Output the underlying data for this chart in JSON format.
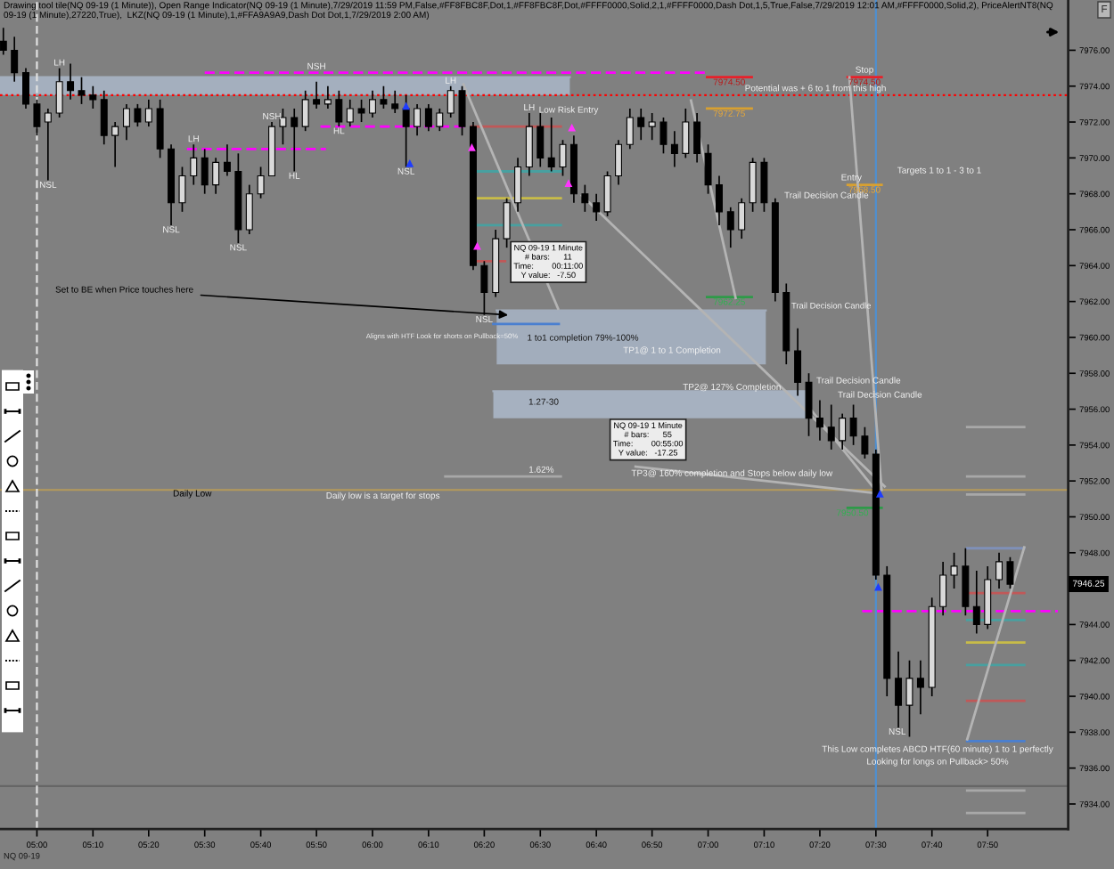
{
  "chart_data": {
    "type": "candlestick",
    "title": "Drawing tool tile(NQ 09-19 (1 Minute)), Open Range Indicator(NQ 09-19 (1 Minute),7/29/2019 11:59 PM,False,#FF8FBC8F,Dot,1,#FF8FBC8F,Dot,#FFFF0000,Solid,2,1,#FFFF0000,Dash Dot,1,5,True,False,7/29/2019 12:01 AM,#FFFF0000,Solid,2), PriceAlertNT8(NQ 09-19 (1 Minute),27220,True),  LKZ(NQ 09-19 (1 Minute),1,#FFA9A9A9,Dash Dot Dot,1,7/29/2019 2:00 AM)",
    "x": [
      4.9,
      4.933,
      4.967,
      5.0,
      5.033,
      5.067,
      5.1,
      5.133,
      5.167,
      5.2,
      5.233,
      5.267,
      5.3,
      5.333,
      5.367,
      5.4,
      5.433,
      5.467,
      5.5,
      5.533,
      5.567,
      5.6,
      5.633,
      5.667,
      5.7,
      5.733,
      5.767,
      5.8,
      5.833,
      5.867,
      5.9,
      5.933,
      5.967,
      6.0,
      6.033,
      6.067,
      6.1,
      6.133,
      6.167,
      6.2,
      6.233,
      6.267,
      6.3,
      6.333,
      6.367,
      6.4,
      6.433,
      6.467,
      6.5,
      6.533,
      6.567,
      6.6,
      6.633,
      6.667,
      6.7,
      6.733,
      6.767,
      6.8,
      6.833,
      6.867,
      6.9,
      6.933,
      6.967,
      7.0,
      7.033,
      7.067,
      7.1,
      7.133,
      7.167,
      7.2,
      7.233,
      7.267,
      7.3,
      7.333,
      7.367,
      7.4,
      7.433,
      7.467,
      7.5,
      7.533,
      7.567,
      7.6,
      7.633,
      7.667,
      7.7,
      7.733,
      7.767,
      7.8,
      7.833,
      7.867,
      7.9
    ],
    "ohlc": [
      [
        7976.5,
        7977.25,
        7975.75,
        7976.0
      ],
      [
        7976.0,
        7976.75,
        7974.25,
        7974.75
      ],
      [
        7974.75,
        7975.0,
        7972.75,
        7973.0
      ],
      [
        7973.0,
        7973.25,
        7971.25,
        7971.75
      ],
      [
        7972.0,
        7972.75,
        7968.75,
        7972.5
      ],
      [
        7972.5,
        7975.0,
        7972.25,
        7974.25
      ],
      [
        7974.25,
        7975.25,
        7973.25,
        7973.75
      ],
      [
        7973.75,
        7974.5,
        7973.0,
        7973.5
      ],
      [
        7973.5,
        7974.0,
        7972.75,
        7973.25
      ],
      [
        7973.25,
        7973.75,
        7970.75,
        7971.25
      ],
      [
        7971.25,
        7972.0,
        7969.5,
        7971.75
      ],
      [
        7971.75,
        7973.0,
        7971.0,
        7972.75
      ],
      [
        7972.75,
        7973.0,
        7971.75,
        7972.0
      ],
      [
        7972.0,
        7973.25,
        7971.75,
        7972.75
      ],
      [
        7972.75,
        7973.25,
        7970.0,
        7970.5
      ],
      [
        7970.5,
        7970.75,
        7966.25,
        7967.5
      ],
      [
        7967.5,
        7969.5,
        7967.0,
        7969.0
      ],
      [
        7969.0,
        7970.75,
        7968.5,
        7970.0
      ],
      [
        7970.0,
        7970.5,
        7968.0,
        7968.5
      ],
      [
        7968.5,
        7970.0,
        7968.0,
        7969.75
      ],
      [
        7969.75,
        7970.75,
        7969.0,
        7969.25
      ],
      [
        7969.25,
        7970.25,
        7965.25,
        7966.0
      ],
      [
        7966.0,
        7968.5,
        7965.75,
        7968.0
      ],
      [
        7968.0,
        7969.5,
        7967.75,
        7969.0
      ],
      [
        7969.0,
        7972.0,
        7969.0,
        7971.75
      ],
      [
        7971.75,
        7972.75,
        7970.75,
        7972.25
      ],
      [
        7972.25,
        7972.75,
        7969.25,
        7971.75
      ],
      [
        7971.75,
        7973.75,
        7971.5,
        7973.25
      ],
      [
        7973.25,
        7974.25,
        7972.75,
        7973.0
      ],
      [
        7973.0,
        7974.0,
        7972.75,
        7973.25
      ],
      [
        7973.25,
        7973.75,
        7971.75,
        7972.0
      ],
      [
        7972.0,
        7973.25,
        7971.75,
        7972.75
      ],
      [
        7972.75,
        7973.25,
        7972.0,
        7972.5
      ],
      [
        7972.5,
        7973.75,
        7972.25,
        7973.25
      ],
      [
        7973.25,
        7974.0,
        7972.75,
        7973.0
      ],
      [
        7973.0,
        7973.75,
        7972.5,
        7972.75
      ],
      [
        7972.75,
        7973.5,
        7969.5,
        7971.75
      ],
      [
        7971.75,
        7973.0,
        7971.25,
        7972.75
      ],
      [
        7972.75,
        7973.0,
        7971.5,
        7971.75
      ],
      [
        7971.75,
        7972.75,
        7971.5,
        7972.5
      ],
      [
        7972.5,
        7974.0,
        7972.25,
        7973.75
      ],
      [
        7973.75,
        7974.0,
        7971.25,
        7971.75
      ],
      [
        7971.75,
        7972.0,
        7963.75,
        7964.0
      ],
      [
        7964.0,
        7964.25,
        7961.25,
        7962.5
      ],
      [
        7962.5,
        7966.0,
        7962.25,
        7965.5
      ],
      [
        7965.5,
        7967.75,
        7965.0,
        7967.5
      ],
      [
        7967.5,
        7970.0,
        7967.0,
        7969.5
      ],
      [
        7969.5,
        7972.5,
        7969.0,
        7971.75
      ],
      [
        7971.75,
        7972.5,
        7969.5,
        7970.0
      ],
      [
        7970.0,
        7972.25,
        7969.25,
        7969.5
      ],
      [
        7969.5,
        7971.0,
        7969.0,
        7970.75
      ],
      [
        7970.75,
        7971.25,
        7967.5,
        7968.0
      ],
      [
        7968.0,
        7968.5,
        7967.0,
        7967.5
      ],
      [
        7967.5,
        7968.0,
        7966.5,
        7967.0
      ],
      [
        7967.0,
        7969.25,
        7966.75,
        7969.0
      ],
      [
        7969.0,
        7971.0,
        7968.5,
        7970.75
      ],
      [
        7970.75,
        7972.75,
        7970.5,
        7972.25
      ],
      [
        7972.25,
        7972.75,
        7971.0,
        7971.75
      ],
      [
        7971.75,
        7972.5,
        7971.0,
        7972.0
      ],
      [
        7972.0,
        7972.25,
        7970.25,
        7970.75
      ],
      [
        7970.75,
        7971.5,
        7969.5,
        7970.25
      ],
      [
        7970.25,
        7972.75,
        7970.0,
        7972.0
      ],
      [
        7972.0,
        7972.5,
        7969.75,
        7970.25
      ],
      [
        7970.25,
        7970.75,
        7968.0,
        7968.5
      ],
      [
        7968.5,
        7969.0,
        7966.25,
        7967.0
      ],
      [
        7967.0,
        7967.25,
        7965.0,
        7966.0
      ],
      [
        7966.0,
        7967.75,
        7965.5,
        7967.5
      ],
      [
        7967.5,
        7970.0,
        7967.0,
        7969.75
      ],
      [
        7969.75,
        7970.0,
        7967.0,
        7967.5
      ],
      [
        7967.5,
        7967.75,
        7962.0,
        7962.5
      ],
      [
        7962.5,
        7963.0,
        7958.5,
        7959.25
      ],
      [
        7959.25,
        7960.5,
        7956.75,
        7957.5
      ],
      [
        7957.5,
        7958.0,
        7954.5,
        7955.5
      ],
      [
        7955.5,
        7956.5,
        7954.25,
        7955.0
      ],
      [
        7955.0,
        7956.25,
        7953.75,
        7954.25
      ],
      [
        7954.25,
        7955.75,
        7953.75,
        7955.5
      ],
      [
        7955.5,
        7956.25,
        7954.0,
        7954.5
      ],
      [
        7954.5,
        7955.0,
        7953.25,
        7953.5
      ],
      [
        7953.5,
        7953.75,
        7946.5,
        7946.75
      ],
      [
        7946.75,
        7947.25,
        7940.0,
        7941.0
      ],
      [
        7941.0,
        7942.5,
        7938.25,
        7939.5
      ],
      [
        7939.5,
        7942.0,
        7937.75,
        7941.0
      ],
      [
        7941.0,
        7942.0,
        7939.0,
        7940.5
      ],
      [
        7940.5,
        7945.5,
        7940.0,
        7945.0
      ],
      [
        7945.0,
        7947.5,
        7944.5,
        7946.75
      ],
      [
        7946.75,
        7948.0,
        7946.0,
        7947.25
      ],
      [
        7947.25,
        7948.25,
        7944.5,
        7945.0
      ],
      [
        7945.0,
        7947.0,
        7943.5,
        7944.0
      ],
      [
        7944.0,
        7947.25,
        7943.75,
        7946.5
      ],
      [
        7946.5,
        7948.0,
        7946.0,
        7947.5
      ],
      [
        7947.5,
        7947.75,
        7946.0,
        7946.25
      ]
    ],
    "series": [
      {
        "type": "line",
        "x": [
          4.89,
          6.588
        ],
        "values": [
          7974.5,
          7974.5
        ],
        "lower": [
          7973.5,
          7973.5
        ],
        "upper": [
          7974.5,
          7974.5
        ],
        "color": "#a4afbe"
      },
      {
        "type": "line",
        "x": [
          6.37,
          7.172
        ],
        "values": [
          7961.5,
          7961.5
        ],
        "lower": [
          7958.5,
          7958.5
        ],
        "upper": [
          7961.5,
          7961.5
        ],
        "color": "#a2adbc"
      },
      {
        "type": "line",
        "x": [
          6.36,
          7.305
        ],
        "values": [
          7957.0,
          7957.0
        ],
        "lower": [
          7955.5,
          7955.5
        ],
        "upper": [
          7957.0,
          7957.0
        ],
        "color": "#a6b1c0"
      },
      {
        "type": "line",
        "x": [
          5.5,
          6.997
        ],
        "values": [
          7974.75,
          7974.75
        ],
        "color": "#ff00ff",
        "line_style": "dashed"
      },
      {
        "type": "line",
        "x": [
          5.447,
          5.861
        ],
        "values": [
          7970.5,
          7970.5
        ],
        "color": "#ff00ff",
        "line_style": "dashed"
      },
      {
        "type": "line",
        "x": [
          5.845,
          6.28
        ],
        "values": [
          7971.75,
          7971.75
        ],
        "color": "#ff00ff",
        "line_style": "dashed"
      },
      {
        "type": "line",
        "x": [
          7.459,
          8.042
        ],
        "values": [
          7944.75,
          7944.75
        ],
        "color": "#ff00ff",
        "line_style": "dashed"
      },
      {
        "type": "line",
        "x": [
          6.997,
          7.13
        ],
        "values": [
          7974.5,
          7974.5
        ],
        "color": "#e8202a"
      },
      {
        "type": "line",
        "x": [
          6.997,
          7.13
        ],
        "values": [
          7972.75,
          7972.75
        ],
        "color": "#d8a030"
      },
      {
        "type": "line",
        "x": [
          6.997,
          7.13
        ],
        "values": [
          7962.25,
          7962.25
        ],
        "color": "#2e9a48"
      },
      {
        "type": "line",
        "x": [
          7.416,
          7.517
        ],
        "values": [
          7974.5,
          7974.5
        ],
        "color": "#e8202a"
      },
      {
        "type": "line",
        "x": [
          7.416,
          7.517
        ],
        "values": [
          7968.5,
          7968.5
        ],
        "color": "#d8a030"
      },
      {
        "type": "line",
        "x": [
          7.416,
          7.517
        ],
        "values": [
          7950.5,
          7950.5
        ],
        "color": "#2e9a48"
      },
      {
        "type": "line",
        "x": [
          6.296,
          6.561
        ],
        "values": [
          7971.75,
          7971.75
        ],
        "color": "#c05858"
      },
      {
        "type": "line",
        "x": [
          6.296,
          6.561
        ],
        "values": [
          7969.25,
          7969.25
        ],
        "color": "#48a0a0"
      },
      {
        "type": "line",
        "x": [
          6.296,
          6.561
        ],
        "values": [
          7967.75,
          7967.75
        ],
        "color": "#c8bc48"
      },
      {
        "type": "line",
        "x": [
          6.296,
          6.561
        ],
        "values": [
          7966.25,
          7966.25
        ],
        "color": "#48a0a0"
      },
      {
        "type": "line",
        "x": [
          6.296,
          6.395
        ],
        "values": [
          7964.25,
          7964.25
        ],
        "color": "#c05858"
      },
      {
        "type": "line",
        "x": [
          6.36,
          6.555
        ],
        "values": [
          7960.75,
          7960.75
        ],
        "color": "#4a7fd0"
      },
      {
        "type": "line",
        "x": [
          6.217,
          6.561
        ],
        "values": [
          7952.25,
          7952.25
        ],
        "color": "#a8a8a8"
      },
      {
        "type": "line",
        "x": [
          7.772,
          7.942
        ],
        "values": [
          7948.25,
          7948.25
        ],
        "color": "#7f90b8"
      },
      {
        "type": "line",
        "x": [
          7.772,
          7.942
        ],
        "values": [
          7945.75,
          7945.75
        ],
        "color": "#c05858"
      },
      {
        "type": "line",
        "x": [
          7.772,
          7.942
        ],
        "values": [
          7944.25,
          7944.25
        ],
        "color": "#48a0a0"
      },
      {
        "type": "line",
        "x": [
          7.772,
          7.942
        ],
        "values": [
          7943.0,
          7943.0
        ],
        "color": "#c8bc48"
      },
      {
        "type": "line",
        "x": [
          7.772,
          7.942
        ],
        "values": [
          7941.75,
          7941.75
        ],
        "color": "#48a0a0"
      },
      {
        "type": "line",
        "x": [
          7.772,
          7.942
        ],
        "values": [
          7939.75,
          7939.75
        ],
        "color": "#c05858"
      },
      {
        "type": "line",
        "x": [
          7.772,
          7.942
        ],
        "values": [
          7937.5,
          7937.5
        ],
        "color": "#4a7fd0"
      },
      {
        "type": "line",
        "x": [
          7.772,
          7.942
        ],
        "values": [
          7955.0,
          7955.0
        ],
        "color": "#a8a8a8"
      },
      {
        "type": "line",
        "x": [
          7.772,
          7.942
        ],
        "values": [
          7952.25,
          7952.25
        ],
        "color": "#a8a8a8"
      },
      {
        "type": "line",
        "x": [
          7.772,
          7.942
        ],
        "values": [
          7951.25,
          7951.25
        ],
        "color": "#a8a8a8"
      },
      {
        "type": "line",
        "x": [
          7.772,
          7.942
        ],
        "values": [
          7934.75,
          7934.75
        ],
        "color": "#a8a8a8"
      },
      {
        "type": "line",
        "x": [
          7.772,
          7.942
        ],
        "values": [
          7933.5,
          7933.5
        ],
        "color": "#a8a8a8"
      },
      {
        "type": "line",
        "x": [
          6.271,
          6.553
        ],
        "values": [
          7974.1,
          7961.6
        ],
        "color": "#b4b4b4"
      },
      {
        "type": "line",
        "x": [
          6.624,
          7.526
        ],
        "values": [
          7967.9,
          7951.7
        ],
        "color": "#b4b4b4"
      },
      {
        "type": "line",
        "x": [
          6.949,
          7.082
        ],
        "values": [
          7973.2,
          7962.2
        ],
        "color": "#b4b4b4"
      },
      {
        "type": "line",
        "x": [
          7.421,
          7.517
        ],
        "values": [
          7974.5,
          7951.5
        ],
        "color": "#b4b4b4"
      },
      {
        "type": "line",
        "x": [
          7.772,
          7.942
        ],
        "values": [
          7937.6,
          7948.3
        ],
        "color": "#b4b4b4"
      },
      {
        "type": "line",
        "x": [
          7.305,
          7.507
        ],
        "values": [
          7956.0,
          7951.3
        ],
        "color": "#b4b4b4"
      },
      {
        "type": "line",
        "x": [
          6.784,
          7.507
        ],
        "values": [
          7952.8,
          7951.3
        ],
        "color": "#b4b4b4"
      },
      {
        "type": "scatter",
        "x": [
          6.296,
          6.312,
          6.584,
          6.594
        ],
        "values": [
          7970.6,
          7965.1,
          7968.6,
          7971.7
        ],
        "color": "#ff33ff",
        "marker": "triangle"
      },
      {
        "type": "scatter",
        "x": [
          6.1,
          6.111,
          7.507,
          7.512
        ],
        "values": [
          7972.9,
          7969.7,
          7946.1,
          7951.3
        ],
        "color": "#1e3cff",
        "marker": "triangle"
      }
    ],
    "ref_lines": [
      {
        "axis": "y",
        "value": 7973.5,
        "color": "#ff0000",
        "line_style": "dotted"
      },
      {
        "axis": "y",
        "value": 7951.5,
        "label": "Daily Low",
        "color": "#b59a5a"
      },
      {
        "axis": "y",
        "value": 7935.0,
        "color": "#666666"
      },
      {
        "axis": "x",
        "value": 5.0,
        "color": "#e0e0e0",
        "line_style": "dashed"
      },
      {
        "axis": "x",
        "value": 7.5,
        "color": "#4f8fd0"
      }
    ],
    "annotations": [
      "NQ 09-19",
      "F",
      {
        "text": "7946.25",
        "y": 7946.25
      },
      {
        "text": "NQ 09-19 1 Minute\n# bars:      11\nTime:        00:11:00\nY value:   -7.50",
        "x": 6.524,
        "y": 7964.2
      },
      {
        "text": "NQ 09-19 1 Minute\n# bars:      55\nTime:        00:55:00\nY value:   -17.25",
        "x": 6.821,
        "y": 7954.3
      },
      {
        "text": "Set to BE when Price touches here",
        "x": 6.404,
        "y": 7961.25
      },
      "1 to1 completion 79%-100%",
      "1.27-30",
      {
        "text": "7974.50",
        "x": 7.063,
        "y": 7974.5
      },
      {
        "text": "7972.75",
        "x": 7.063,
        "y": 7972.75
      },
      {
        "text": "7962.25",
        "x": 7.063,
        "y": 7962.25
      },
      {
        "text": "7974.50",
        "x": 7.466,
        "y": 7974.5
      },
      {
        "text": "7968.50",
        "x": 7.466,
        "y": 7968.5
      },
      {
        "text": "7950.50",
        "x": 7.43,
        "y": 7950.5
      },
      {
        "text": "LH",
        "x": 5.067,
        "y": 7975.0
      },
      {
        "text": "NSL",
        "x": 5.033,
        "y": 7968.75
      },
      {
        "text": "LH",
        "x": 5.467,
        "y": 7970.75
      },
      {
        "text": "NSL",
        "x": 5.4,
        "y": 7966.25
      },
      {
        "text": "NSL",
        "x": 5.6,
        "y": 7965.25
      },
      {
        "text": "NSH",
        "x": 5.7,
        "y": 7972.0
      },
      {
        "text": "HL",
        "x": 5.767,
        "y": 7969.25
      },
      {
        "text": "NSH",
        "x": 5.833,
        "y": 7974.25
      },
      {
        "text": "HL",
        "x": 5.9,
        "y": 7971.75
      },
      {
        "text": "NSL",
        "x": 6.1,
        "y": 7969.5
      },
      {
        "text": "LH",
        "x": 6.233,
        "y": 7974.0
      },
      {
        "text": "NSL",
        "x": 6.333,
        "y": 7961.25
      },
      {
        "text": "LH",
        "x": 6.467,
        "y": 7972.5
      },
      "Low Risk Entry",
      {
        "text": "Potential was + 6 to 1 from this high",
        "x": 7.32,
        "y": 7973.5
      },
      {
        "text": "Stop",
        "x": 7.466,
        "y": 7974.5
      },
      {
        "text": "Entry",
        "x": 7.427,
        "y": 7968.5
      },
      "Targets 1 to 1 - 3 to 1",
      "Trail Decision Candle",
      "Trail Decision Candle",
      "Trail Decision Candle",
      "Trail Decision Candle",
      "Aligns with HTF Look for shorts on Pullback=50%",
      "TP1@ 1 to 1 Completion",
      {
        "text": "TP2@ 127% Completion",
        "x": 7.071,
        "y": 7957.2
      },
      {
        "text": "1.62%",
        "x": 6.503,
        "y": 7952.6
      },
      {
        "text": "TP3@ 160% completion and Stops below daily low",
        "x": 7.071,
        "y": 7952.4
      },
      {
        "text": "Daily low is a target for stops",
        "x": 6.031,
        "y": 7951.5
      },
      {
        "text": "NSL",
        "x": 7.6,
        "y": 7937.75
      },
      "This Low completes ABCD HTF(60 minute) 1 to 1 perfectly",
      "Looking for longs on Pullback> 50%"
    ],
    "xlim": [
      4.89,
      8.073
    ],
    "ylim": [
      7932.6,
      7978.8
    ],
    "xticks": [
      {
        "value": 5.0,
        "label": "05:00"
      },
      {
        "value": 5.167,
        "label": "05:10"
      },
      {
        "value": 5.333,
        "label": "05:20"
      },
      {
        "value": 5.5,
        "label": "05:30"
      },
      {
        "value": 5.667,
        "label": "05:40"
      },
      {
        "value": 5.833,
        "label": "05:50"
      },
      {
        "value": 6.0,
        "label": "06:00"
      },
      {
        "value": 6.167,
        "label": "06:10"
      },
      {
        "value": 6.333,
        "label": "06:20"
      },
      {
        "value": 6.5,
        "label": "06:30"
      },
      {
        "value": 6.667,
        "label": "06:40"
      },
      {
        "value": 6.833,
        "label": "06:50"
      },
      {
        "value": 7.0,
        "label": "07:00"
      },
      {
        "value": 7.167,
        "label": "07:10"
      },
      {
        "value": 7.333,
        "label": "07:20"
      },
      {
        "value": 7.5,
        "label": "07:30"
      },
      {
        "value": 7.667,
        "label": "07:40"
      },
      {
        "value": 7.833,
        "label": "07:50"
      }
    ],
    "yticks": [
      {
        "value": 7934,
        "label": "7934.00"
      },
      {
        "value": 7936,
        "label": "7936.00"
      },
      {
        "value": 7938,
        "label": "7938.00"
      },
      {
        "value": 7940,
        "label": "7940.00"
      },
      {
        "value": 7942,
        "label": "7942.00"
      },
      {
        "value": 7944,
        "label": "7944.00"
      },
      {
        "value": 7946,
        "label": null
      },
      {
        "value": 7948,
        "label": "7948.00"
      },
      {
        "value": 7950,
        "label": "7950.00"
      },
      {
        "value": 7952,
        "label": "7952.00"
      },
      {
        "value": 7954,
        "label": "7954.00"
      },
      {
        "value": 7956,
        "label": "7956.00"
      },
      {
        "value": 7958,
        "label": "7958.00"
      },
      {
        "value": 7960,
        "label": "7960.00"
      },
      {
        "value": 7962,
        "label": "7962.00"
      },
      {
        "value": 7964,
        "label": "7964.00"
      },
      {
        "value": 7966,
        "label": "7966.00"
      },
      {
        "value": 7968,
        "label": "7968.00"
      },
      {
        "value": 7970,
        "label": "7970.00"
      },
      {
        "value": 7972,
        "label": "7972.00"
      },
      {
        "value": 7974,
        "label": "7974.00"
      },
      {
        "value": 7976,
        "label": "7976.00"
      }
    ]
  }
}
